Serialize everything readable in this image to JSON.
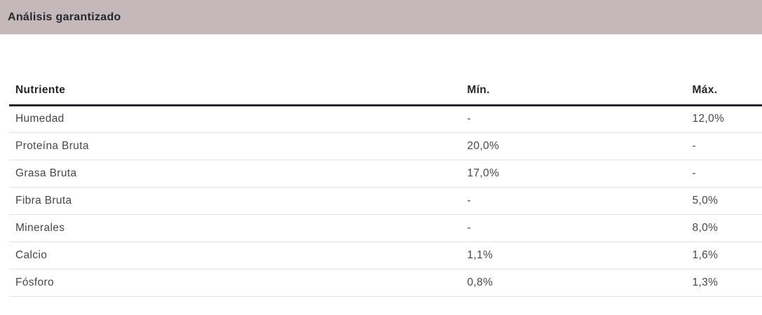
{
  "section": {
    "title": "Análisis garantizado"
  },
  "table": {
    "columns": [
      {
        "label": "Nutriente"
      },
      {
        "label": "Mín."
      },
      {
        "label": "Máx."
      }
    ],
    "rows": [
      {
        "nutrient": "Humedad",
        "min": "-",
        "max": "12,0%"
      },
      {
        "nutrient": "Proteína Bruta",
        "min": "20,0%",
        "max": "-"
      },
      {
        "nutrient": "Grasa Bruta",
        "min": "17,0%",
        "max": "-"
      },
      {
        "nutrient": "Fibra Bruta",
        "min": "-",
        "max": "5,0%"
      },
      {
        "nutrient": "Minerales",
        "min": "-",
        "max": "8,0%"
      },
      {
        "nutrient": "Calcio",
        "min": "1,1%",
        "max": "1,6%"
      },
      {
        "nutrient": "Fósforo",
        "min": "0,8%",
        "max": "1,3%"
      }
    ]
  },
  "colors": {
    "header_bar_bg": "#c4b8ba",
    "header_text": "#262930",
    "table_header_text": "#23262d",
    "table_header_border": "#23262e",
    "row_divider": "#e2e1e7",
    "row_text": "#45474e"
  }
}
